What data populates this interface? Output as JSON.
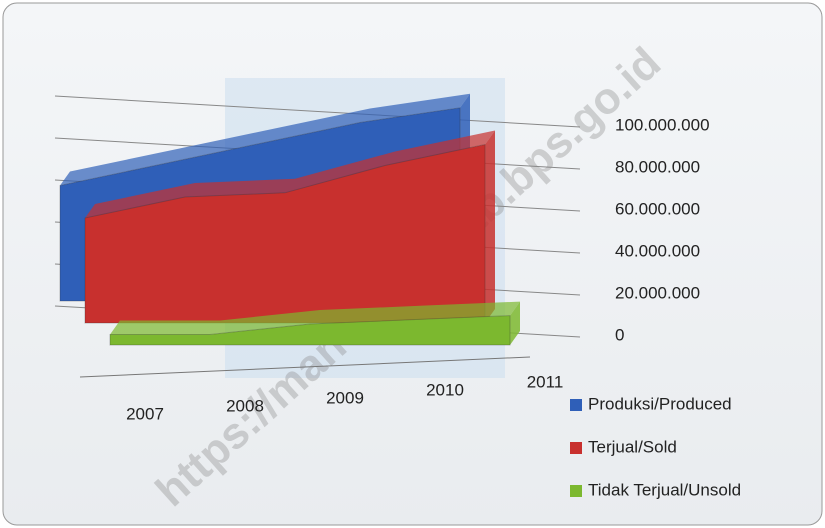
{
  "chart_data": {
    "type": "area3d",
    "categories": [
      "2007",
      "2008",
      "2009",
      "2010",
      "2011"
    ],
    "series": [
      {
        "name": "Produksi/Produced",
        "color": "#2f5fb8",
        "values": [
          55000000,
          65000000,
          75000000,
          85000000,
          92000000
        ]
      },
      {
        "name": "Terjual/Sold",
        "color": "#c8302e",
        "values": [
          50000000,
          60000000,
          62000000,
          75000000,
          85000000
        ]
      },
      {
        "name": "Tidak Terjual/Unsold",
        "color": "#7cb82f",
        "values": [
          5000000,
          5000000,
          10000000,
          12000000,
          14000000
        ]
      }
    ],
    "ylim": [
      0,
      100000000
    ],
    "yticks": [
      0,
      {
        "value": 20000000,
        "label": "20.000.000"
      },
      {
        "value": 40000000,
        "label": "40.000.000"
      },
      {
        "value": 60000000,
        "label": "60.000.000"
      },
      {
        "value": 80000000,
        "label": "80.000.000"
      },
      {
        "value": 100000000,
        "label": "100.000.000"
      }
    ],
    "grid": true,
    "legend": "bottom-right",
    "watermark": "https://manokwarikab.bps.go.id"
  }
}
